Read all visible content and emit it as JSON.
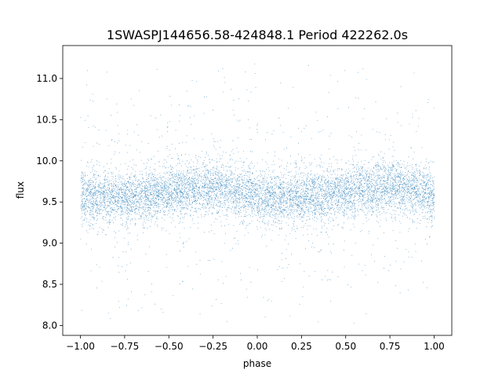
{
  "chart_data": {
    "type": "scatter",
    "title": "1SWASPJ144656.58-424848.1 Period 422262.0s",
    "xlabel": "phase",
    "ylabel": "flux",
    "xlim": [
      -1.1,
      1.1
    ],
    "ylim": [
      7.88,
      11.4
    ],
    "xticks": [
      -1.0,
      -0.75,
      -0.5,
      -0.25,
      0.0,
      0.25,
      0.5,
      0.75,
      1.0
    ],
    "xtick_labels": [
      "−1.00",
      "−0.75",
      "−0.50",
      "−0.25",
      "0.00",
      "0.25",
      "0.50",
      "0.75",
      "1.00"
    ],
    "yticks": [
      8.0,
      8.5,
      9.0,
      9.5,
      10.0,
      10.5,
      11.0
    ],
    "ytick_labels": [
      "8.0",
      "8.5",
      "9.0",
      "9.5",
      "10.0",
      "10.5",
      "11.0"
    ],
    "grid": false,
    "marker_color": "#1f77b4",
    "x_range": [
      -1.0,
      1.0
    ],
    "flux_center": 9.6,
    "flux_min": 8.03,
    "flux_max": 11.23,
    "trend": [
      {
        "phase": -1.0,
        "flux": 9.58
      },
      {
        "phase": -0.75,
        "flux": 9.55
      },
      {
        "phase": -0.5,
        "flux": 9.62
      },
      {
        "phase": -0.25,
        "flux": 9.7
      },
      {
        "phase": 0.0,
        "flux": 9.58
      },
      {
        "phase": 0.25,
        "flux": 9.55
      },
      {
        "phase": 0.5,
        "flux": 9.62
      },
      {
        "phase": 0.75,
        "flux": 9.7
      },
      {
        "phase": 1.0,
        "flux": 9.58
      }
    ]
  }
}
